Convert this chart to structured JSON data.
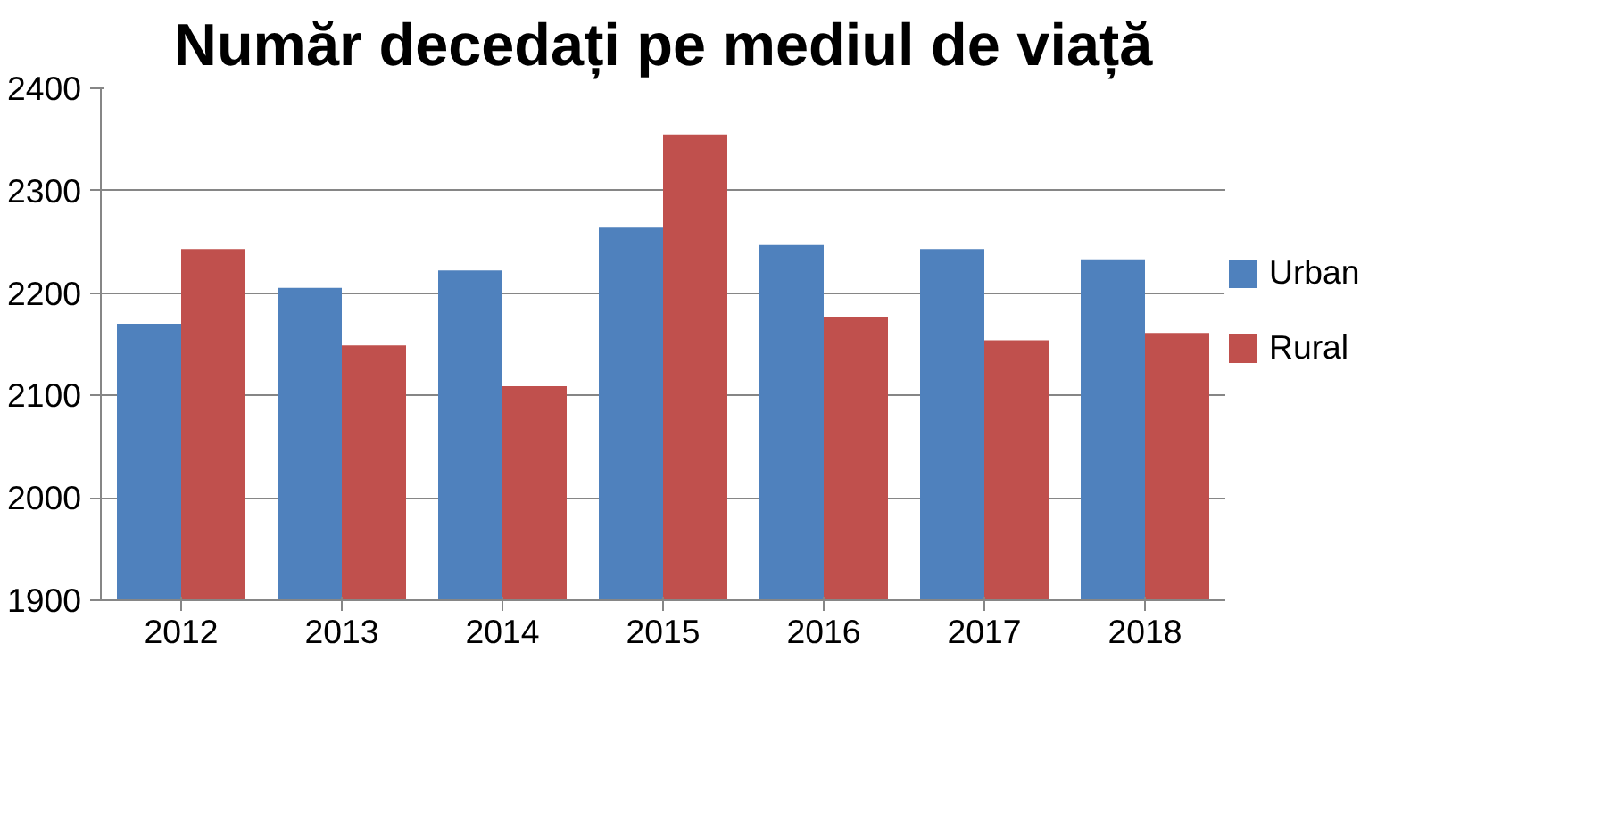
{
  "chart_data": {
    "type": "bar",
    "title": "Număr decedați pe mediul de viață",
    "categories": [
      "2012",
      "2013",
      "2014",
      "2015",
      "2016",
      "2017",
      "2018"
    ],
    "series": [
      {
        "name": "Urban",
        "color": "#4f81bd",
        "values": [
          2170,
          2205,
          2222,
          2264,
          2247,
          2243,
          2233
        ]
      },
      {
        "name": "Rural",
        "color": "#c0504d",
        "values": [
          2243,
          2149,
          2109,
          2355,
          2177,
          2154,
          2161
        ]
      }
    ],
    "ylim": [
      1900,
      2400
    ],
    "yticks": [
      1900,
      2000,
      2100,
      2200,
      2300,
      2400
    ],
    "grid": "y",
    "legend": "right"
  }
}
